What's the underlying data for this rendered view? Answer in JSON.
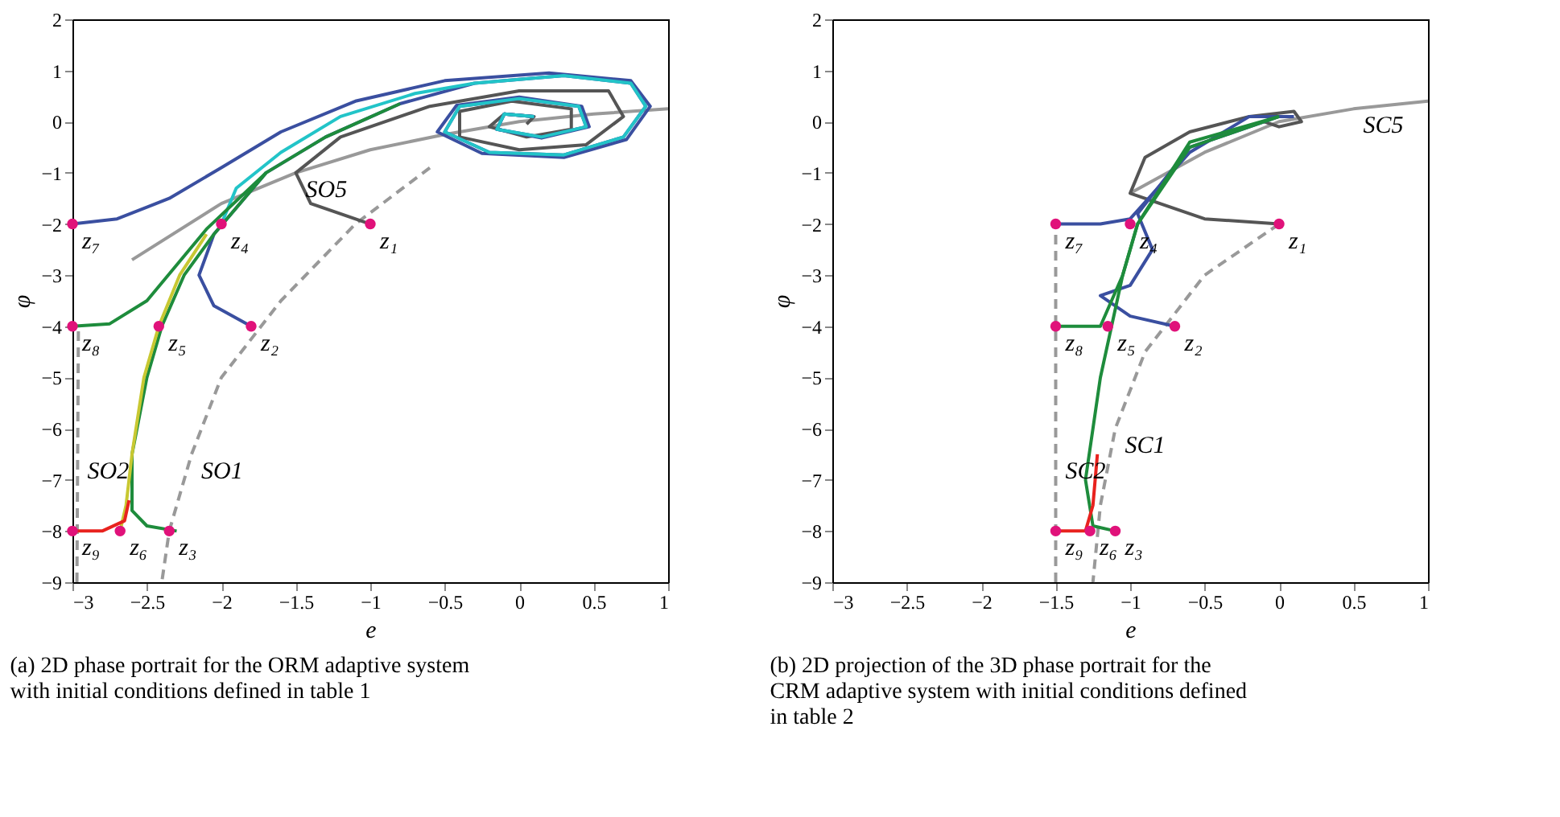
{
  "chart_data": [
    {
      "type": "line",
      "title": "(a) 2D phase portrait for the ORM adaptive system with initial conditions defined in table 1",
      "xlabel": "e",
      "ylabel": "φ",
      "xlim": [
        -3,
        1
      ],
      "ylim": [
        -9,
        2
      ],
      "xticks": [
        -3,
        -2.5,
        -2,
        -1.5,
        -1,
        -0.5,
        0,
        0.5,
        1
      ],
      "yticks": [
        -9,
        -8,
        -7,
        -6,
        -5,
        -4,
        -3,
        -2,
        -1,
        0,
        1,
        2
      ],
      "series": [
        {
          "color": "#999999",
          "line_style": "solid",
          "x": [
            -2.6,
            -2,
            -1.5,
            -1,
            -0.5,
            0,
            0.5,
            1
          ],
          "values": [
            -2.7,
            -1.6,
            -1,
            -0.55,
            -0.25,
            0,
            0.15,
            0.25
          ]
        },
        {
          "color": "#999999",
          "line_style": "dashed",
          "x": [
            -0.6,
            -1.1,
            -1.6,
            -2,
            -2.2,
            -2.35,
            -2.4
          ],
          "values": [
            -0.9,
            -2,
            -3.5,
            -5,
            -6.5,
            -8,
            -9
          ]
        },
        {
          "color": "#999999",
          "line_style": "dashed",
          "x": [
            -2.97,
            -2.96
          ],
          "values": [
            -9,
            -4
          ]
        },
        {
          "color": "#555555",
          "line_style": "solid",
          "x": [
            -1,
            -1.4,
            -1.5,
            -1.2,
            -0.6,
            0,
            0.6,
            0.7,
            0.45,
            0,
            -0.4,
            -0.4,
            -0.05,
            0.35,
            0.35,
            0.05,
            -0.2,
            -0.1,
            0.1,
            0.05
          ],
          "values": [
            -2,
            -1.6,
            -1,
            -0.3,
            0.3,
            0.6,
            0.6,
            0.1,
            -0.45,
            -0.55,
            -0.3,
            0.2,
            0.4,
            0.25,
            -0.15,
            -0.3,
            -0.1,
            0.15,
            0.1,
            -0.05
          ]
        },
        {
          "color": "#3a4fa0",
          "line_style": "solid",
          "x": [
            -3,
            -2.7,
            -2.35,
            -2,
            -1.6,
            -1.1,
            -0.5,
            0.2,
            0.75,
            0.88,
            0.72,
            0.3,
            -0.25,
            -0.55,
            -0.42,
            0,
            0.42,
            0.47,
            0.15,
            -0.15,
            -0.1,
            0.1
          ],
          "values": [
            -2,
            -1.9,
            -1.5,
            -0.9,
            -0.2,
            0.4,
            0.8,
            0.95,
            0.8,
            0.3,
            -0.35,
            -0.7,
            -0.62,
            -0.2,
            0.32,
            0.48,
            0.3,
            -0.1,
            -0.32,
            -0.15,
            0.15,
            0.1
          ]
        },
        {
          "color": "#3a4fa0",
          "line_style": "solid",
          "x": [
            -1.8,
            -2.05,
            -2.15,
            -2.05,
            -1.7,
            -1.3,
            -0.8,
            -0.3,
            0.3,
            0.75,
            0.85,
            0.7,
            0.3,
            -0.2,
            -0.5,
            -0.4,
            0,
            0.4,
            0.45,
            0.15,
            -0.15,
            -0.1,
            0.1
          ],
          "values": [
            -4,
            -3.6,
            -3,
            -2.2,
            -1,
            -0.3,
            0.35,
            0.75,
            0.9,
            0.75,
            0.3,
            -0.3,
            -0.65,
            -0.6,
            -0.2,
            0.3,
            0.45,
            0.3,
            -0.1,
            -0.3,
            -0.15,
            0.15,
            0.1
          ]
        },
        {
          "color": "#22c4c8",
          "line_style": "solid",
          "x": [
            -2,
            -1.9,
            -1.6,
            -1.2,
            -0.7,
            -0.3,
            0.3,
            0.75,
            0.85,
            0.7,
            0.3,
            -0.2,
            -0.5,
            -0.4,
            0,
            0.4,
            0.45,
            0.15,
            -0.15,
            -0.1,
            0.1
          ],
          "values": [
            -2,
            -1.3,
            -0.6,
            0.1,
            0.55,
            0.75,
            0.9,
            0.75,
            0.3,
            -0.3,
            -0.65,
            -0.6,
            -0.2,
            0.3,
            0.45,
            0.3,
            -0.1,
            -0.3,
            -0.15,
            0.15,
            0.1
          ]
        },
        {
          "color": "#1e8c3c",
          "line_style": "solid",
          "x": [
            -3,
            -2.75,
            -2.5,
            -2.3,
            -2.1,
            -1.7,
            -1.3,
            -0.8
          ],
          "values": [
            -4,
            -3.95,
            -3.5,
            -2.8,
            -2.1,
            -1,
            -0.3,
            0.35
          ]
        },
        {
          "color": "#1e8c3c",
          "line_style": "solid",
          "x": [
            -2.3,
            -2.5,
            -2.6,
            -2.6,
            -2.5,
            -2.4,
            -2.25,
            -2.05,
            -1.7
          ],
          "values": [
            -8,
            -7.9,
            -7.6,
            -6.5,
            -5,
            -4,
            -3,
            -2.2,
            -1
          ]
        },
        {
          "color": "#c8c832",
          "line_style": "solid",
          "x": [
            -2.68,
            -2.64,
            -2.6,
            -2.52,
            -2.42,
            -2.28,
            -2.1
          ],
          "values": [
            -8,
            -7.5,
            -6.5,
            -5,
            -4,
            -3,
            -2.2
          ]
        },
        {
          "color": "#e8221e",
          "line_style": "solid",
          "x": [
            -3,
            -2.8,
            -2.65,
            -2.62
          ],
          "values": [
            -8,
            -8,
            -7.8,
            -7.4
          ]
        },
        {
          "type": "scatter",
          "marker": "circle",
          "color": "#e0127a",
          "x": [
            -1,
            -1.8,
            -2.35,
            -2,
            -2.42,
            -2.68,
            -3,
            -3,
            -3
          ],
          "values": [
            -2,
            -4,
            -8,
            -2,
            -4,
            -8,
            -2,
            -4,
            -8
          ]
        }
      ],
      "annotations": [
        {
          "text": "z₁",
          "x": -1,
          "y": -2
        },
        {
          "text": "z₂",
          "x": -1.8,
          "y": -4
        },
        {
          "text": "z₃",
          "x": -2.35,
          "y": -8
        },
        {
          "text": "z₄",
          "x": -2,
          "y": -2
        },
        {
          "text": "z₅",
          "x": -2.42,
          "y": -4
        },
        {
          "text": "z₆",
          "x": -2.68,
          "y": -8
        },
        {
          "text": "z₇",
          "x": -3,
          "y": -2
        },
        {
          "text": "z₈",
          "x": -3,
          "y": -4
        },
        {
          "text": "z₉",
          "x": -3,
          "y": -8
        },
        {
          "text": "SO5",
          "x": -1.5,
          "y": -1
        },
        {
          "text": "SO1",
          "x": -2.2,
          "y": -6.5
        },
        {
          "text": "SO2",
          "x": -2.965,
          "y": -6.5
        }
      ]
    },
    {
      "type": "line",
      "title": "(b) 2D projection of the 3D phase portrait for the CRM adaptive system with initial conditions defined in table 2",
      "xlabel": "e",
      "ylabel": "φ",
      "xlim": [
        -3,
        1
      ],
      "ylim": [
        -9,
        2
      ],
      "xticks": [
        -3,
        -2.5,
        -2,
        -1.5,
        -1,
        -0.5,
        0,
        0.5,
        1
      ],
      "yticks": [
        -9,
        -8,
        -7,
        -6,
        -5,
        -4,
        -3,
        -2,
        -1,
        0,
        1,
        2
      ],
      "series": [
        {
          "color": "#999999",
          "line_style": "solid",
          "x": [
            -1,
            -0.5,
            0,
            0.5,
            1
          ],
          "values": [
            -1.4,
            -0.6,
            0,
            0.25,
            0.4
          ]
        },
        {
          "color": "#999999",
          "line_style": "dashed",
          "x": [
            0,
            -0.5,
            -0.9,
            -1.1,
            -1.2,
            -1.25
          ],
          "values": [
            -2,
            -3,
            -4.5,
            -6,
            -7.5,
            -9
          ]
        },
        {
          "color": "#999999",
          "line_style": "dashed",
          "x": [
            -1.5,
            -1.5
          ],
          "values": [
            -9,
            -2
          ]
        },
        {
          "color": "#555555",
          "line_style": "solid",
          "x": [
            0,
            -0.5,
            -1,
            -0.9,
            -0.6,
            -0.2,
            0.1,
            0.15,
            0,
            -0.1
          ],
          "values": [
            -2,
            -1.9,
            -1.4,
            -0.7,
            -0.2,
            0.1,
            0.2,
            0,
            -0.1,
            0
          ]
        },
        {
          "color": "#3a4fa0",
          "line_style": "solid",
          "x": [
            -1.5,
            -1.2,
            -1,
            -0.6,
            -0.2,
            0.1
          ],
          "values": [
            -2,
            -2,
            -1.9,
            -0.6,
            0.1,
            0.1
          ]
        },
        {
          "color": "#3a4fa0",
          "line_style": "solid",
          "x": [
            -0.7,
            -1,
            -1.2,
            -1,
            -0.85,
            -0.95,
            -0.6,
            0
          ],
          "values": [
            -4,
            -3.8,
            -3.4,
            -3.2,
            -2.5,
            -1.8,
            -0.5,
            0.1
          ]
        },
        {
          "color": "#1e8c3c",
          "line_style": "solid",
          "x": [
            -1.5,
            -1.2,
            -1.05,
            -0.95,
            -0.6,
            0
          ],
          "values": [
            -4,
            -4,
            -3,
            -2,
            -0.4,
            0.1
          ]
        },
        {
          "color": "#1e8c3c",
          "line_style": "solid",
          "x": [
            -1.1,
            -1.25,
            -1.3,
            -1.2,
            -1.05,
            -0.95,
            -0.6,
            0
          ],
          "values": [
            -8,
            -7.9,
            -7,
            -5,
            -3,
            -2,
            -0.5,
            0.1
          ]
        },
        {
          "color": "#e8221e",
          "line_style": "solid",
          "x": [
            -1.5,
            -1.3,
            -1.25,
            -1.22
          ],
          "values": [
            -8,
            -8,
            -7.5,
            -6.5
          ]
        },
        {
          "type": "scatter",
          "marker": "circle",
          "color": "#e0127a",
          "x": [
            0,
            -0.7,
            -1.1,
            -1,
            -1.15,
            -1.27,
            -1.5,
            -1.5,
            -1.5
          ],
          "values": [
            -2,
            -4,
            -8,
            -2,
            -4,
            -8,
            -2,
            -4,
            -8
          ]
        }
      ],
      "annotations": [
        {
          "text": "z₁",
          "x": 0,
          "y": -2
        },
        {
          "text": "z₂",
          "x": -0.7,
          "y": -4
        },
        {
          "text": "z₃",
          "x": -1.1,
          "y": -8
        },
        {
          "text": "z₄",
          "x": -1,
          "y": -2
        },
        {
          "text": "z₅",
          "x": -1.15,
          "y": -4
        },
        {
          "text": "z₆",
          "x": -1.27,
          "y": -8
        },
        {
          "text": "z₇",
          "x": -1.5,
          "y": -2
        },
        {
          "text": "z₈",
          "x": -1.5,
          "y": -4
        },
        {
          "text": "z₉",
          "x": -1.5,
          "y": -8
        },
        {
          "text": "SC5",
          "x": 0.5,
          "y": 0.25
        },
        {
          "text": "SC1",
          "x": -1.1,
          "y": -6
        },
        {
          "text": "SC2",
          "x": -1.5,
          "y": -6.5
        }
      ]
    }
  ]
}
